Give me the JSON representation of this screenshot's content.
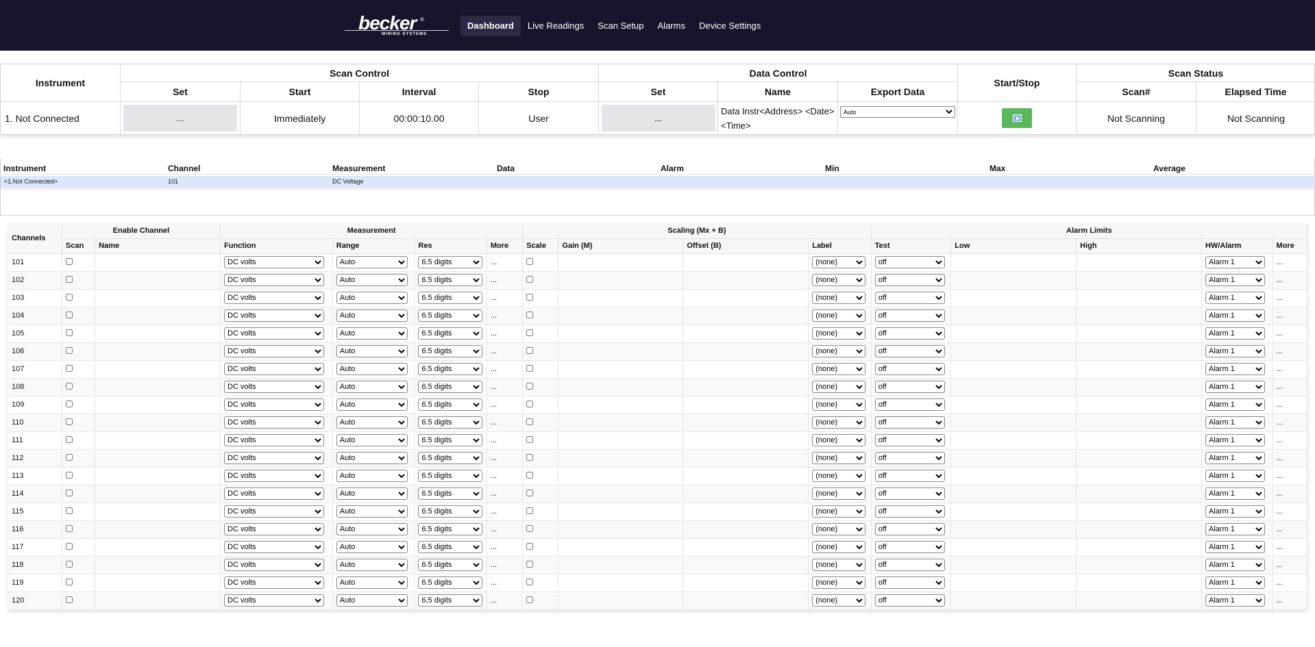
{
  "brand": {
    "name": "becker",
    "reg": "®",
    "sub": "MINING SYSTEMS"
  },
  "nav": [
    "Dashboard",
    "Live Readings",
    "Scan Setup",
    "Alarms",
    "Device Settings"
  ],
  "control": {
    "headers": {
      "instrument": "Instrument",
      "scan_control": "Scan Control",
      "data_control": "Data Control",
      "start_stop": "Start/Stop",
      "scan_status": "Scan Status",
      "set": "Set",
      "start": "Start",
      "interval": "Interval",
      "stop": "Stop",
      "set2": "Set",
      "name": "Name",
      "export": "Export Data",
      "scan_num": "Scan#",
      "elapsed": "Elapsed Time"
    },
    "instrument_value": "1. Not Connected",
    "set_button": "...",
    "start_value": "Immediately",
    "interval_value": "00:00:10.00",
    "stop_value": "User",
    "set2_button": "...",
    "name_value": "Data Instr<Address> <Date><Time>",
    "export_value": "Auto",
    "scan_num_value": "Not Scanning",
    "elapsed_value": "Not Scanning"
  },
  "readings": {
    "headers": [
      "Instrument",
      "Channel",
      "Measurement",
      "Data",
      "Alarm",
      "Min",
      "Max",
      "Average"
    ],
    "row": {
      "instrument": "<1.Not Connected>",
      "channel": "101",
      "measurement": "DC Voltage"
    }
  },
  "channels": {
    "group_headers": {
      "channels": "Channels",
      "enable": "Enable Channel",
      "measurement": "Measurement",
      "scaling": "Scaling (Mx + B)",
      "alarm_limits": "Alarm Limits"
    },
    "col_headers": {
      "scan": "Scan",
      "name": "Name",
      "function": "Function",
      "range": "Range",
      "res": "Res",
      "more": "More",
      "scale": "Scale",
      "gain": "Gain (M)",
      "offset": "Offset (B)",
      "label": "Label",
      "test": "Test",
      "low": "Low",
      "high": "High",
      "hw_alarm": "HW/Alarm",
      "more2": "More"
    },
    "defaults": {
      "function": "DC volts",
      "range": "Auto",
      "res": "6.5 digits",
      "more": "...",
      "label": "(none)",
      "test": "off",
      "hw_alarm": "Alarm 1"
    },
    "rows": [
      "101",
      "102",
      "103",
      "104",
      "105",
      "106",
      "107",
      "108",
      "109",
      "110",
      "111",
      "112",
      "113",
      "114",
      "115",
      "116",
      "117",
      "118",
      "119",
      "120"
    ]
  }
}
